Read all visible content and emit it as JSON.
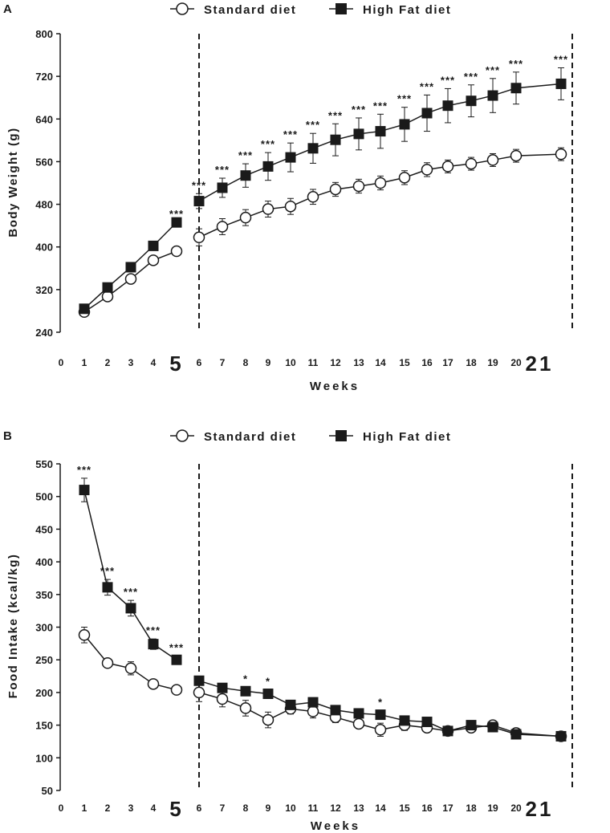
{
  "legend": {
    "standard": "Standard diet",
    "highfat": "High Fat diet"
  },
  "chart_data": [
    {
      "panel": "A",
      "type": "line",
      "ylabel": "Body Weight (g)",
      "xlabel": "Weeks",
      "ylim": [
        240,
        800
      ],
      "yticks": [
        240,
        320,
        400,
        480,
        560,
        640,
        720,
        800
      ],
      "xticks": [
        "0",
        "1",
        "2",
        "3",
        "4",
        "5",
        "6",
        "7",
        "8",
        "9",
        "10",
        "11",
        "12",
        "13",
        "14",
        "15",
        "16",
        "17",
        "18",
        "19",
        "20",
        "21"
      ],
      "big_ticks": [
        "5",
        "21"
      ],
      "vlines": [
        5,
        21
      ],
      "series": [
        {
          "name": "Standard diet",
          "marker": "circle",
          "segments": [
            {
              "x": [
                1,
                2,
                3,
                4,
                5
              ],
              "y": [
                278,
                307,
                340,
                375,
                392
              ],
              "err": [
                0,
                0,
                0,
                0,
                0
              ]
            },
            {
              "x": [
                6,
                7,
                8,
                9,
                10,
                11,
                12,
                13,
                14,
                15,
                16,
                17,
                18,
                19,
                20,
                21
              ],
              "y": [
                418,
                438,
                455,
                471,
                476,
                494,
                508,
                514,
                520,
                530,
                545,
                551,
                556,
                563,
                571,
                574
              ],
              "err": [
                16,
                15,
                15,
                15,
                15,
                14,
                13,
                13,
                13,
                13,
                13,
                12,
                12,
                12,
                12,
                12
              ]
            }
          ]
        },
        {
          "name": "High Fat diet",
          "marker": "square",
          "segments": [
            {
              "x": [
                1,
                2,
                3,
                4,
                5
              ],
              "y": [
                284,
                324,
                362,
                402,
                446
              ],
              "err": [
                0,
                0,
                0,
                0,
                0
              ]
            },
            {
              "x": [
                6,
                7,
                8,
                9,
                10,
                11,
                12,
                13,
                14,
                15,
                16,
                17,
                18,
                19,
                20,
                21
              ],
              "y": [
                486,
                511,
                534,
                551,
                568,
                585,
                601,
                612,
                617,
                630,
                651,
                665,
                674,
                684,
                698,
                706
              ],
              "err": [
                14,
                18,
                22,
                26,
                27,
                28,
                30,
                30,
                32,
                32,
                34,
                32,
                30,
                32,
                30,
                30
              ]
            }
          ]
        }
      ],
      "annotations": [
        {
          "x": 5,
          "y": 446,
          "text": "***"
        },
        {
          "x": 6,
          "y": 486,
          "text": "***"
        },
        {
          "x": 7,
          "y": 511,
          "text": "***"
        },
        {
          "x": 8,
          "y": 534,
          "text": "***"
        },
        {
          "x": 9,
          "y": 551,
          "text": "***"
        },
        {
          "x": 10,
          "y": 568,
          "text": "***"
        },
        {
          "x": 11,
          "y": 585,
          "text": "***"
        },
        {
          "x": 12,
          "y": 601,
          "text": "***"
        },
        {
          "x": 13,
          "y": 612,
          "text": "***"
        },
        {
          "x": 14,
          "y": 617,
          "text": "***"
        },
        {
          "x": 15,
          "y": 630,
          "text": "***"
        },
        {
          "x": 16,
          "y": 651,
          "text": "***"
        },
        {
          "x": 17,
          "y": 665,
          "text": "***"
        },
        {
          "x": 18,
          "y": 674,
          "text": "***"
        },
        {
          "x": 19,
          "y": 684,
          "text": "***"
        },
        {
          "x": 20,
          "y": 698,
          "text": "***"
        },
        {
          "x": 21,
          "y": 706,
          "text": "***"
        }
      ]
    },
    {
      "panel": "B",
      "type": "line",
      "ylabel": "Food Intake (kcal/kg)",
      "xlabel": "Weeks",
      "ylim": [
        50,
        550
      ],
      "yticks": [
        50,
        100,
        150,
        200,
        250,
        300,
        350,
        400,
        450,
        500,
        550
      ],
      "xticks": [
        "0",
        "1",
        "2",
        "3",
        "4",
        "5",
        "6",
        "7",
        "8",
        "9",
        "10",
        "11",
        "12",
        "13",
        "14",
        "15",
        "16",
        "17",
        "18",
        "19",
        "20",
        "21"
      ],
      "big_ticks": [
        "5",
        "21"
      ],
      "vlines": [
        5,
        21
      ],
      "series": [
        {
          "name": "Standard diet",
          "marker": "circle",
          "segments": [
            {
              "x": [
                1,
                2,
                3,
                4,
                5
              ],
              "y": [
                288,
                245,
                237,
                213,
                204
              ],
              "err": [
                12,
                6,
                10,
                5,
                4
              ]
            },
            {
              "x": [
                6,
                7,
                8,
                9,
                10,
                11,
                12,
                13,
                14,
                15,
                16,
                17,
                18,
                19,
                20,
                21
              ],
              "y": [
                200,
                190,
                176,
                158,
                175,
                171,
                162,
                152,
                143,
                150,
                146,
                141,
                146,
                150,
                138,
                133
              ],
              "err": [
                14,
                12,
                12,
                12,
                8,
                10,
                8,
                6,
                10,
                8,
                6,
                6,
                6,
                6,
                4,
                4
              ]
            }
          ]
        },
        {
          "name": "High Fat diet",
          "marker": "square",
          "segments": [
            {
              "x": [
                1,
                2,
                3,
                4,
                5
              ],
              "y": [
                510,
                361,
                329,
                274,
                250
              ],
              "err": [
                18,
                12,
                12,
                8,
                6
              ]
            },
            {
              "x": [
                6,
                7,
                8,
                9,
                10,
                11,
                12,
                13,
                14,
                15,
                16,
                17,
                18,
                19,
                20,
                21
              ],
              "y": [
                218,
                207,
                202,
                198,
                181,
                185,
                173,
                168,
                166,
                157,
                155,
                141,
                150,
                147,
                136,
                133
              ],
              "err": [
                6,
                6,
                6,
                6,
                6,
                6,
                6,
                6,
                6,
                6,
                6,
                6,
                6,
                6,
                6,
                6
              ]
            }
          ]
        }
      ],
      "annotations": [
        {
          "x": 1,
          "y": 510,
          "text": "***"
        },
        {
          "x": 2,
          "y": 361,
          "text": "***"
        },
        {
          "x": 3,
          "y": 329,
          "text": "***"
        },
        {
          "x": 4,
          "y": 274,
          "text": "***"
        },
        {
          "x": 5,
          "y": 250,
          "text": "***"
        },
        {
          "x": 8,
          "y": 202,
          "text": "*"
        },
        {
          "x": 9,
          "y": 198,
          "text": "*"
        },
        {
          "x": 14,
          "y": 166,
          "text": "*"
        }
      ]
    }
  ]
}
